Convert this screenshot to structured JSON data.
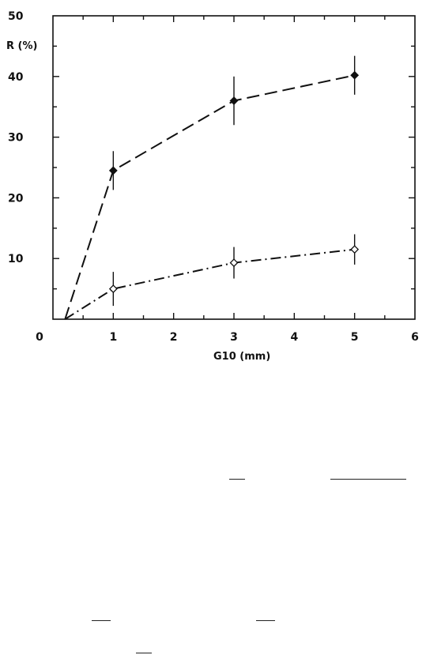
{
  "chart_data": {
    "type": "line",
    "title": "",
    "xlabel": "G10 (mm)",
    "ylabel": "R (%)",
    "xlim": [
      0,
      6
    ],
    "ylim": [
      0,
      50
    ],
    "x_ticks": [
      "0",
      "1",
      "2",
      "3",
      "4",
      "5",
      "6"
    ],
    "y_ticks": [
      "10",
      "20",
      "30",
      "40",
      "50"
    ],
    "grid": false,
    "series": [
      {
        "marker": "filled-diamond",
        "line_style": "dashed",
        "points": [
          {
            "x": 0.2,
            "y": 0
          },
          {
            "x": 1,
            "y": 24.5,
            "err": 3.2
          },
          {
            "x": 3,
            "y": 36,
            "err": 4
          },
          {
            "x": 5,
            "y": 40.2,
            "err": 3.2
          }
        ]
      },
      {
        "marker": "open-diamond",
        "line_style": "dash-dot",
        "points": [
          {
            "x": 0.2,
            "y": 0
          },
          {
            "x": 1,
            "y": 5,
            "err": 2.8
          },
          {
            "x": 3,
            "y": 9.3,
            "err": 2.6
          },
          {
            "x": 5,
            "y": 11.5,
            "err": 2.5
          }
        ]
      }
    ],
    "colors": {
      "ink": "#111111",
      "background": "#ffffff"
    }
  }
}
